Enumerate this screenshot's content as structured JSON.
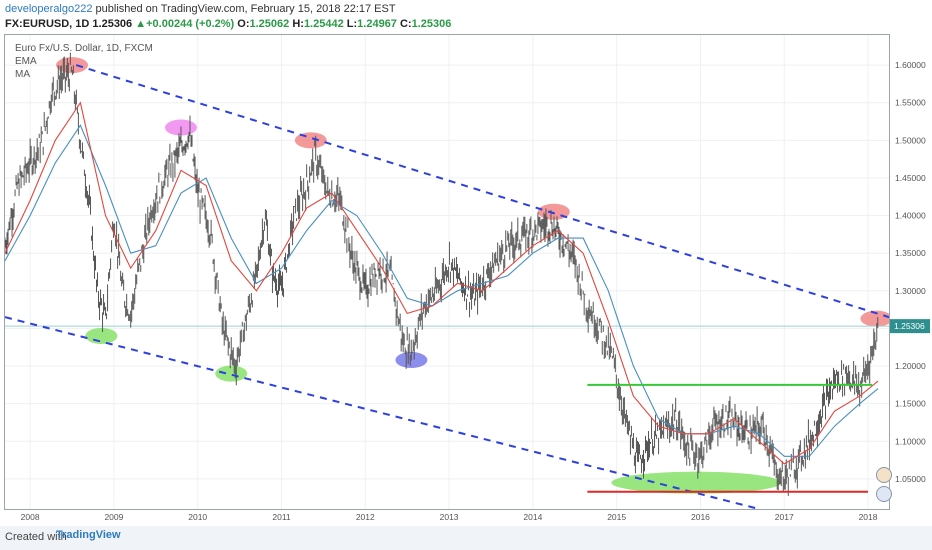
{
  "header": {
    "author": "developeralgo222",
    "published_text": "published on TradingView.com, February 15, 2018 22:17 EST",
    "symbol": "FX:EURUSD, 1D",
    "last": "1.25306",
    "change_arrow": "▲",
    "change": "+0.00244 (+0.2%)",
    "open_label": "O:",
    "open": "1.25062",
    "high_label": "H:",
    "high": "1.25442",
    "low_label": "L:",
    "low": "1.24967",
    "close_label": "C:",
    "close": "1.25306"
  },
  "legend": {
    "title": "Euro Fx/U.S. Dollar, 1D, FXCM",
    "ema": "EMA",
    "ma": "MA"
  },
  "footer": {
    "created_with": "Created with",
    "brand": "TradingView"
  },
  "colors": {
    "up": "#2a9a47",
    "candle": "#555555",
    "ema": "#e0473f",
    "ma": "#4a8fbf",
    "trendline": "#2c3fe0",
    "support": "#38c838",
    "resistance": "#e02828",
    "price_badge": "#2f8f8f",
    "grid": "#eef1f4"
  },
  "chart_data": {
    "type": "line",
    "symbol": "EURUSD",
    "timeframe": "1D",
    "xlim": [
      2007.7,
      2018.25
    ],
    "ylim": [
      1.01,
      1.64
    ],
    "y_scale": "linear",
    "grid": true,
    "x_ticks": [
      "2008",
      "2009",
      "2010",
      "2011",
      "2012",
      "2013",
      "2014",
      "2015",
      "2016",
      "2017",
      "2018"
    ],
    "y_ticks": [
      "1.60000",
      "1.55000",
      "1.50000",
      "1.45000",
      "1.40000",
      "1.35000",
      "1.30000",
      "1.25000",
      "1.20000",
      "1.15000",
      "1.10000",
      "1.05000"
    ],
    "last_price_label": "1.25306",
    "price_series": {
      "name": "",
      "x": [
        2007.7,
        2007.85,
        2008.0,
        2008.15,
        2008.25,
        2008.35,
        2008.5,
        2008.6,
        2008.7,
        2008.8,
        2008.9,
        2009.0,
        2009.1,
        2009.2,
        2009.3,
        2009.45,
        2009.6,
        2009.75,
        2009.9,
        2010.0,
        2010.15,
        2010.3,
        2010.45,
        2010.55,
        2010.7,
        2010.8,
        2010.9,
        2011.0,
        2011.15,
        2011.3,
        2011.4,
        2011.55,
        2011.7,
        2011.85,
        2012.0,
        2012.15,
        2012.3,
        2012.45,
        2012.55,
        2012.7,
        2012.85,
        2013.0,
        2013.15,
        2013.3,
        2013.5,
        2013.7,
        2013.85,
        2014.0,
        2014.2,
        2014.35,
        2014.5,
        2014.65,
        2014.8,
        2014.95,
        2015.1,
        2015.25,
        2015.4,
        2015.55,
        2015.7,
        2015.85,
        2016.0,
        2016.15,
        2016.3,
        2016.45,
        2016.6,
        2016.75,
        2016.9,
        2017.0,
        2017.15,
        2017.3,
        2017.45,
        2017.6,
        2017.75,
        2017.9,
        2018.0,
        2018.12
      ],
      "y": [
        1.36,
        1.44,
        1.47,
        1.5,
        1.56,
        1.58,
        1.59,
        1.5,
        1.42,
        1.3,
        1.26,
        1.4,
        1.3,
        1.27,
        1.33,
        1.41,
        1.45,
        1.48,
        1.51,
        1.43,
        1.38,
        1.25,
        1.2,
        1.25,
        1.32,
        1.4,
        1.32,
        1.3,
        1.4,
        1.44,
        1.48,
        1.43,
        1.42,
        1.34,
        1.3,
        1.33,
        1.32,
        1.23,
        1.22,
        1.28,
        1.3,
        1.34,
        1.31,
        1.29,
        1.33,
        1.36,
        1.37,
        1.38,
        1.39,
        1.37,
        1.34,
        1.28,
        1.25,
        1.21,
        1.13,
        1.07,
        1.1,
        1.11,
        1.13,
        1.09,
        1.08,
        1.12,
        1.13,
        1.12,
        1.11,
        1.12,
        1.06,
        1.05,
        1.07,
        1.1,
        1.14,
        1.18,
        1.19,
        1.17,
        1.2,
        1.25
      ]
    },
    "ema_series": {
      "name": "EMA",
      "x": [
        2007.7,
        2008.0,
        2008.3,
        2008.6,
        2008.9,
        2009.2,
        2009.5,
        2009.8,
        2010.1,
        2010.4,
        2010.7,
        2011.0,
        2011.3,
        2011.6,
        2011.9,
        2012.2,
        2012.5,
        2012.8,
        2013.1,
        2013.4,
        2013.7,
        2014.0,
        2014.3,
        2014.6,
        2014.9,
        2015.2,
        2015.5,
        2015.8,
        2016.1,
        2016.4,
        2016.7,
        2017.0,
        2017.3,
        2017.6,
        2017.9,
        2018.12
      ],
      "y": [
        1.35,
        1.42,
        1.5,
        1.55,
        1.4,
        1.33,
        1.38,
        1.46,
        1.44,
        1.34,
        1.3,
        1.35,
        1.41,
        1.43,
        1.38,
        1.33,
        1.27,
        1.28,
        1.31,
        1.3,
        1.33,
        1.36,
        1.38,
        1.35,
        1.26,
        1.16,
        1.12,
        1.11,
        1.11,
        1.13,
        1.1,
        1.07,
        1.09,
        1.14,
        1.16,
        1.18
      ]
    },
    "ma_series": {
      "name": "MA",
      "x": [
        2007.7,
        2008.0,
        2008.3,
        2008.6,
        2008.9,
        2009.2,
        2009.5,
        2009.8,
        2010.1,
        2010.4,
        2010.7,
        2011.0,
        2011.3,
        2011.6,
        2011.9,
        2012.2,
        2012.5,
        2012.8,
        2013.1,
        2013.4,
        2013.7,
        2014.0,
        2014.3,
        2014.6,
        2014.9,
        2015.2,
        2015.5,
        2015.8,
        2016.1,
        2016.4,
        2016.7,
        2017.0,
        2017.3,
        2017.6,
        2017.9,
        2018.12
      ],
      "y": [
        1.34,
        1.4,
        1.47,
        1.52,
        1.44,
        1.35,
        1.36,
        1.43,
        1.45,
        1.37,
        1.31,
        1.33,
        1.38,
        1.42,
        1.4,
        1.35,
        1.29,
        1.28,
        1.3,
        1.31,
        1.32,
        1.35,
        1.37,
        1.37,
        1.3,
        1.2,
        1.13,
        1.11,
        1.11,
        1.12,
        1.11,
        1.08,
        1.08,
        1.12,
        1.15,
        1.17
      ]
    },
    "annotations": {
      "upper_channel": {
        "x": [
          2008.55,
          2018.25
        ],
        "y": [
          1.6,
          1.265
        ],
        "style": "dashed"
      },
      "lower_channel": {
        "x": [
          2007.7,
          2016.7
        ],
        "y": [
          1.265,
          1.01
        ],
        "style": "dashed"
      },
      "support_line": {
        "x": [
          2014.65,
          2018.05
        ],
        "y": [
          1.175,
          1.175
        ]
      },
      "base_line": {
        "x": [
          2014.65,
          2018.0
        ],
        "y": [
          1.033,
          1.033
        ]
      },
      "last_price_line": {
        "y": 1.25306
      },
      "highlights": [
        {
          "x": 2008.5,
          "y": 1.6,
          "color": "#f07f7f"
        },
        {
          "x": 2009.8,
          "y": 1.517,
          "color": "#ef7fef"
        },
        {
          "x": 2011.35,
          "y": 1.5,
          "color": "#f07f7f"
        },
        {
          "x": 2014.25,
          "y": 1.405,
          "color": "#f07f7f"
        },
        {
          "x": 2018.1,
          "y": 1.263,
          "color": "#f07f7f"
        },
        {
          "x": 2008.85,
          "y": 1.24,
          "color": "#80e060"
        },
        {
          "x": 2010.4,
          "y": 1.19,
          "color": "#80e060"
        },
        {
          "x": 2012.55,
          "y": 1.208,
          "color": "#7070e8"
        },
        {
          "x": 2015.95,
          "y": 1.045,
          "color": "#80e060"
        }
      ]
    }
  }
}
